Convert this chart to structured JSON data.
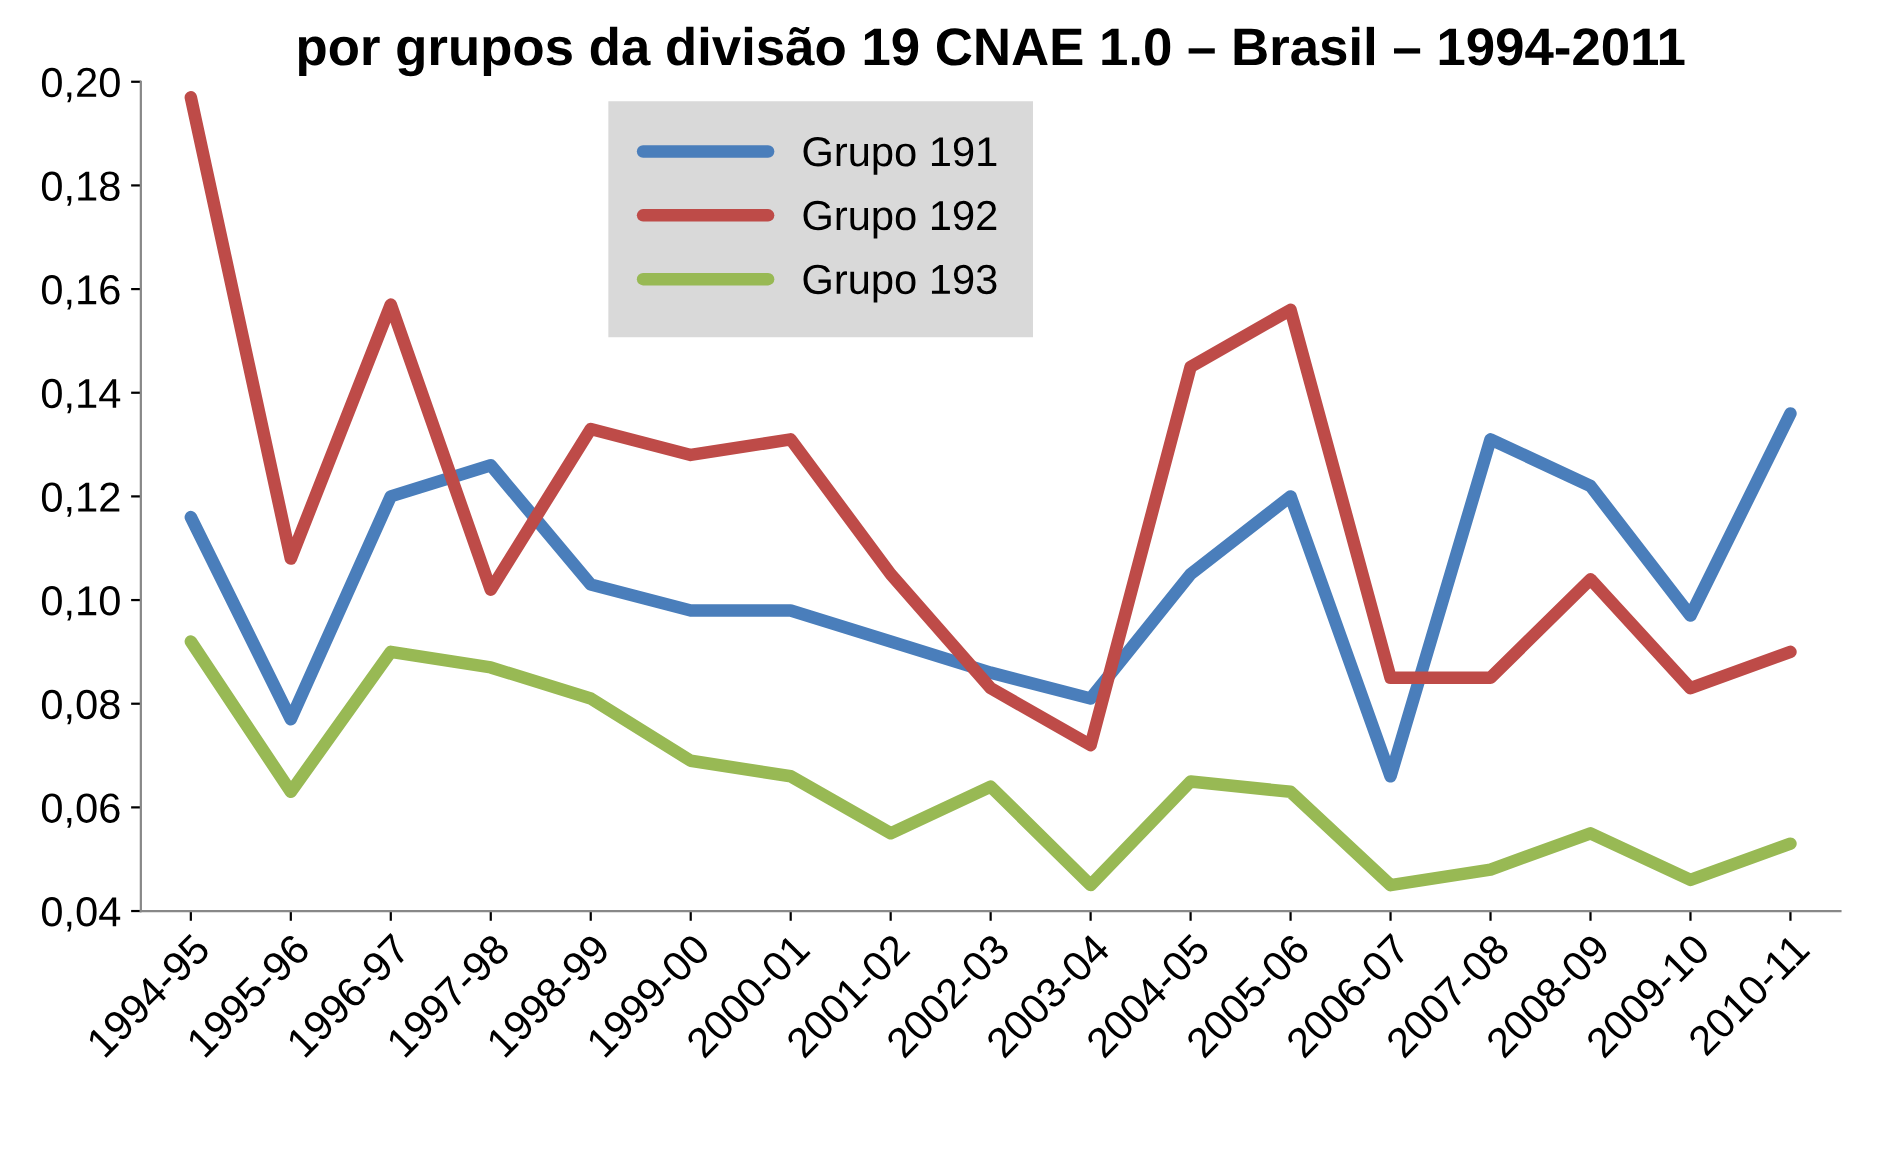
{
  "chart_data": {
    "type": "line",
    "title": "por grupos da divisão 19 CNAE 1.0 – Brasil – 1994-2011",
    "categories": [
      "1994-95",
      "1995-96",
      "1996-97",
      "1997-98",
      "1998-99",
      "1999-00",
      "2000-01",
      "2001-02",
      "2002-03",
      "2003-04",
      "2004-05",
      "2005-06",
      "2006-07",
      "2007-08",
      "2008-09",
      "2009-10",
      "2010-11"
    ],
    "series": [
      {
        "name": "Grupo 191",
        "color": "#4a7ebb",
        "values": [
          0.116,
          0.077,
          0.12,
          0.126,
          0.103,
          0.098,
          0.098,
          0.092,
          0.086,
          0.081,
          0.105,
          0.12,
          0.066,
          0.131,
          0.122,
          0.097,
          0.136
        ]
      },
      {
        "name": "Grupo 192",
        "color": "#be4b48",
        "values": [
          0.197,
          0.108,
          0.157,
          0.102,
          0.133,
          0.128,
          0.131,
          0.105,
          0.083,
          0.072,
          0.145,
          0.156,
          0.085,
          0.085,
          0.104,
          0.083,
          0.09
        ]
      },
      {
        "name": "Grupo 193",
        "color": "#98b954",
        "values": [
          0.092,
          0.063,
          0.09,
          0.087,
          0.081,
          0.069,
          0.066,
          0.055,
          0.064,
          0.045,
          0.065,
          0.063,
          0.045,
          0.048,
          0.055,
          0.046,
          0.053
        ]
      }
    ],
    "ylim": [
      0.04,
      0.2
    ],
    "yticks": [
      {
        "value": 0.04,
        "label": "0,04"
      },
      {
        "value": 0.06,
        "label": "0,06"
      },
      {
        "value": 0.08,
        "label": "0,08"
      },
      {
        "value": 0.1,
        "label": "0,10"
      },
      {
        "value": 0.12,
        "label": "0,12"
      },
      {
        "value": 0.14,
        "label": "0,14"
      },
      {
        "value": 0.16,
        "label": "0,16"
      },
      {
        "value": 0.18,
        "label": "0,18"
      },
      {
        "value": 0.2,
        "label": "0,20"
      }
    ],
    "grid": false,
    "legend": "top",
    "marker": "none",
    "line_style": "solid"
  }
}
